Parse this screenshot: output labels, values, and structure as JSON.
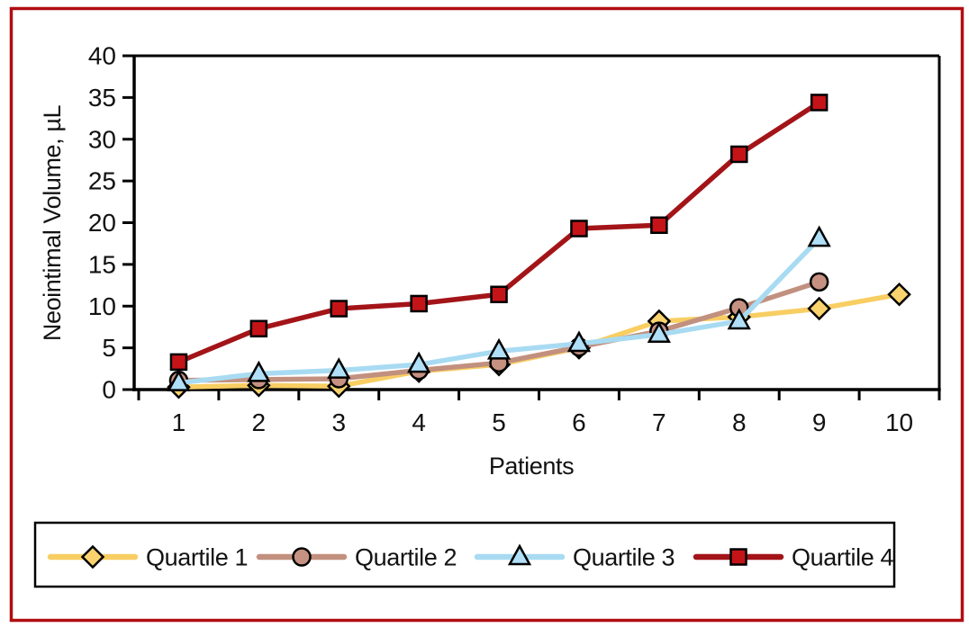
{
  "figure": {
    "border_color": "#B00E12",
    "background_color": "#FFFFFF",
    "axis_color": "#000000",
    "text_color": "#121212"
  },
  "chart_data": {
    "type": "line",
    "title": "",
    "xlabel": "Patients",
    "ylabel": "Neointimal Volume, µL",
    "x": [
      1,
      2,
      3,
      4,
      5,
      6,
      7,
      8,
      9,
      10
    ],
    "x_tick_labels": [
      "1",
      "2",
      "3",
      "4",
      "5",
      "6",
      "7",
      "8",
      "9",
      "10"
    ],
    "yticks": [
      0,
      5,
      10,
      15,
      20,
      25,
      30,
      35,
      40
    ],
    "ylim": [
      0,
      40
    ],
    "grid": false,
    "legend_position": "bottom-box",
    "series": [
      {
        "name": "Quartile 1",
        "marker": "diamond",
        "line_color": "#F8CE63",
        "marker_fill": "#FAD36E",
        "values": [
          0.3,
          0.5,
          0.4,
          2.2,
          3.0,
          5.0,
          8.2,
          8.7,
          9.7,
          11.4
        ]
      },
      {
        "name": "Quartile 2",
        "marker": "circle",
        "line_color": "#C2907F",
        "marker_fill": "#C79182",
        "values": [
          1.1,
          1.2,
          1.3,
          2.3,
          3.2,
          5.1,
          7.0,
          9.8,
          12.9,
          null
        ]
      },
      {
        "name": "Quartile 3",
        "marker": "triangle",
        "line_color": "#A8DBF2",
        "marker_fill": "#B0E0F7",
        "values": [
          0.8,
          1.9,
          2.3,
          3.0,
          4.6,
          5.5,
          6.6,
          8.2,
          18.1,
          null
        ]
      },
      {
        "name": "Quartile 4",
        "marker": "square",
        "line_color": "#A31418",
        "marker_fill": "#C51418",
        "values": [
          3.3,
          7.3,
          9.7,
          10.3,
          11.4,
          19.3,
          19.7,
          28.2,
          34.4,
          null
        ]
      }
    ]
  }
}
